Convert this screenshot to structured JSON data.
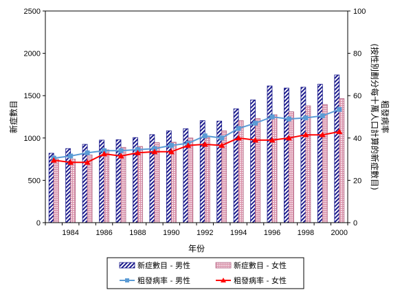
{
  "chart_data": {
    "type": "bar",
    "x": [
      1983,
      1984,
      1985,
      1986,
      1987,
      1988,
      1989,
      1990,
      1991,
      1992,
      1993,
      1994,
      1995,
      1996,
      1997,
      1998,
      1999,
      2000
    ],
    "xticks": [
      "1984",
      "1986",
      "1988",
      "1990",
      "1992",
      "1994",
      "1996",
      "1998",
      "2000"
    ],
    "xlabel": "年份",
    "ylabel_left": "新症數目",
    "ylabel_right": [
      "粗發病率",
      "(按性別劃分每十萬人口計算的新症數目)"
    ],
    "ylim_left": [
      0,
      2500
    ],
    "yticks_left": [
      "0",
      "500",
      "1000",
      "1500",
      "2000",
      "2500"
    ],
    "ylim_right": [
      0,
      100
    ],
    "yticks_right": [
      "0",
      "20",
      "40",
      "60",
      "80",
      "100"
    ],
    "grid": false,
    "legend_position": "bottom",
    "series": [
      {
        "name": "新症數目 - 男性",
        "kind": "bar",
        "axis": "left",
        "color": "#1a1a8c",
        "values": [
          820,
          875,
          925,
          975,
          980,
          1005,
          1040,
          1085,
          1110,
          1205,
          1200,
          1345,
          1450,
          1615,
          1590,
          1600,
          1635,
          1745
        ]
      },
      {
        "name": "新症數目 - 女性",
        "kind": "bar",
        "axis": "left",
        "color": "#e8b8c8",
        "values": [
          750,
          750,
          800,
          860,
          890,
          900,
          945,
          950,
          1000,
          1005,
          1085,
          1205,
          1230,
          1275,
          1310,
          1380,
          1395,
          1465
        ]
      },
      {
        "name": "粗發病率 - 男性",
        "kind": "line",
        "axis": "right",
        "color": "#5b9bd5",
        "values": [
          30.5,
          31.5,
          33,
          34,
          34,
          34.5,
          35,
          36.5,
          37.5,
          41,
          40,
          44.5,
          47,
          50,
          49,
          49.5,
          50.5,
          53.5
        ]
      },
      {
        "name": "粗發病率 - 女性",
        "kind": "line",
        "axis": "right",
        "color": "#ff0000",
        "values": [
          29.5,
          28.5,
          28.5,
          32.5,
          31.5,
          33,
          33.5,
          33.5,
          36.5,
          37,
          36.5,
          40,
          39,
          39,
          40,
          41.5,
          41.5,
          43
        ]
      }
    ]
  }
}
